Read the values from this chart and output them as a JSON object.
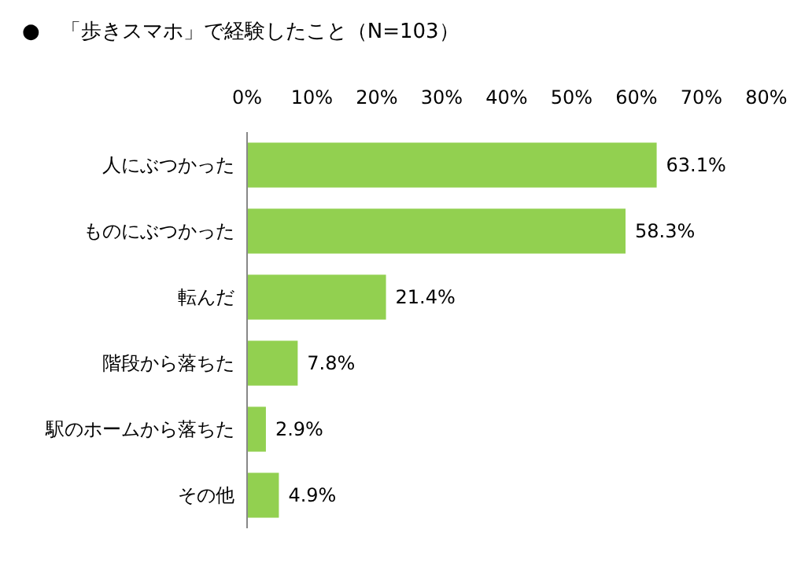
{
  "chart_data": {
    "type": "bar",
    "orientation": "horizontal",
    "title": "●　「歩きスマホ」で経験したこと（N=103）",
    "categories": [
      "人にぶつかった",
      "ものにぶつかった",
      "転んだ",
      "階段から落ちた",
      "駅のホームから落ちた",
      "その他"
    ],
    "values": [
      63.1,
      58.3,
      21.4,
      7.8,
      2.9,
      4.9
    ],
    "value_labels": [
      "63.1%",
      "58.3%",
      "21.4%",
      "7.8%",
      "2.9%",
      "4.9%"
    ],
    "color": "#92d050",
    "xlim": [
      0,
      80
    ],
    "xticks": [
      {
        "value": 0,
        "label": "0%"
      },
      {
        "value": 10,
        "label": "10%"
      },
      {
        "value": 20,
        "label": "20%"
      },
      {
        "value": 30,
        "label": "30%"
      },
      {
        "value": 40,
        "label": "40%"
      },
      {
        "value": 50,
        "label": "50%"
      },
      {
        "value": 60,
        "label": "60%"
      },
      {
        "value": 70,
        "label": "70%"
      },
      {
        "value": 80,
        "label": "80%"
      }
    ]
  }
}
